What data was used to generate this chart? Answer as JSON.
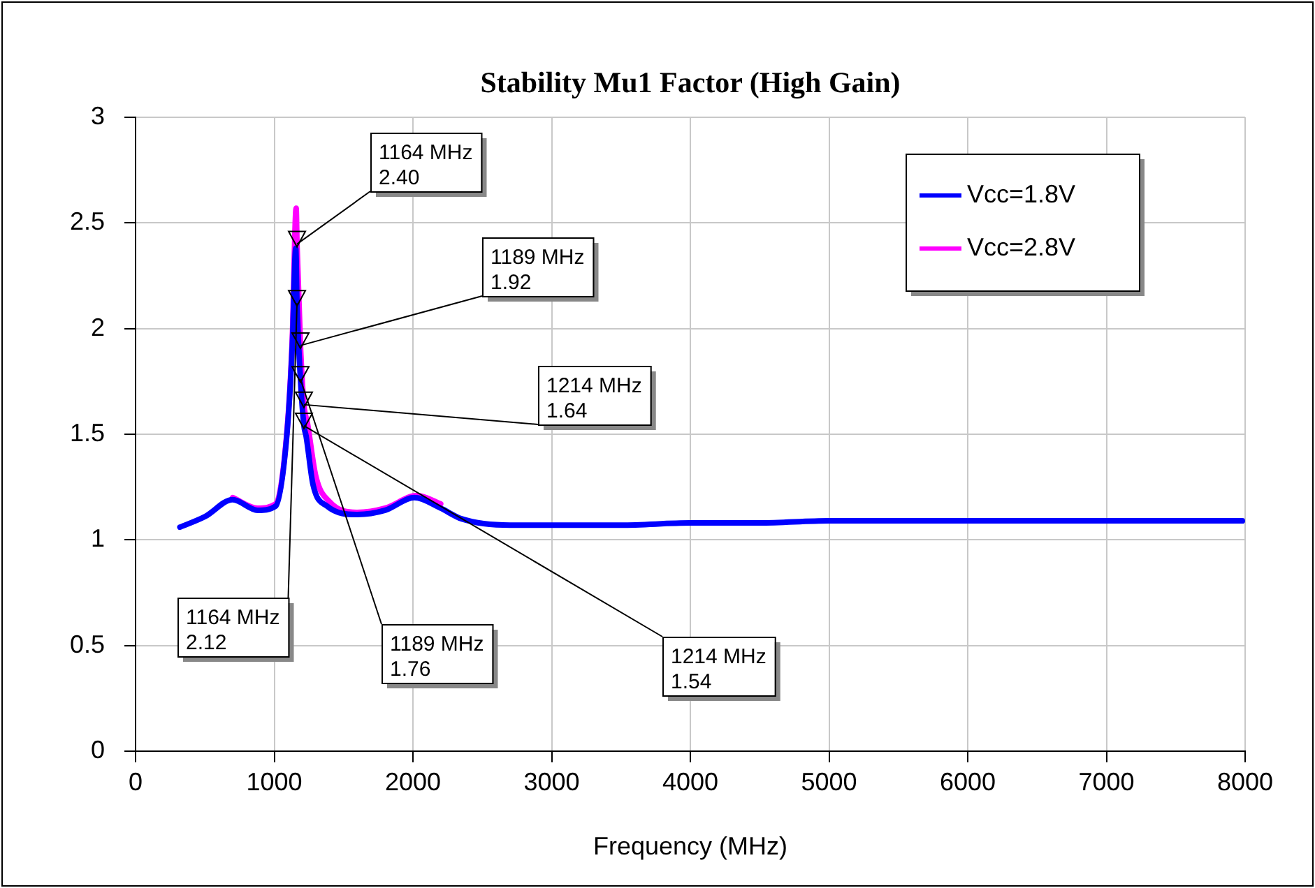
{
  "chart_data": {
    "type": "line",
    "title": "Stability Mu1 Factor (High Gain)",
    "xlabel": "Frequency (MHz)",
    "xlim": [
      0,
      8000
    ],
    "xticks": [
      0,
      1000,
      2000,
      3000,
      4000,
      5000,
      6000,
      7000,
      8000
    ],
    "ylim": [
      0,
      3
    ],
    "yticks": [
      0,
      0.5,
      1,
      1.5,
      2,
      2.5,
      3
    ],
    "grid": true,
    "legend": "top right",
    "marker": "none",
    "line_style": "solid",
    "series": [
      {
        "name": "Vcc=1.8V",
        "color": "#0000ff",
        "x": [
          320,
          500,
          700,
          880,
          1010,
          1090,
          1130,
          1155,
          1164,
          1189,
          1214,
          1230,
          1280,
          1380,
          1600,
          1800,
          2010,
          2200,
          2350,
          2700,
          3000,
          3500,
          4000,
          4500,
          5000,
          5500,
          6000,
          6500,
          7000,
          7500,
          7980
        ],
        "values": [
          1.06,
          1.11,
          1.19,
          1.14,
          1.16,
          1.49,
          1.92,
          2.38,
          2.12,
          1.76,
          1.54,
          1.49,
          1.26,
          1.16,
          1.12,
          1.14,
          1.2,
          1.15,
          1.1,
          1.07,
          1.07,
          1.07,
          1.08,
          1.08,
          1.09,
          1.09,
          1.09,
          1.09,
          1.09,
          1.09,
          1.09
        ]
      },
      {
        "name": "Vcc=2.8V",
        "color": "#ff00ff",
        "x": [
          700,
          880,
          1010,
          1090,
          1130,
          1158,
          1164,
          1189,
          1214,
          1240,
          1300,
          1400,
          1600,
          1800,
          2030,
          2200
        ],
        "values": [
          1.2,
          1.15,
          1.17,
          1.5,
          1.95,
          2.57,
          2.4,
          1.92,
          1.64,
          1.55,
          1.3,
          1.18,
          1.13,
          1.15,
          1.21,
          1.17
        ]
      }
    ],
    "annotations": [
      {
        "text": "1164 MHz\n2.40",
        "x": 1164,
        "y": 2.4
      },
      {
        "text": "1189 MHz\n1.92",
        "x": 1189,
        "y": 1.92
      },
      {
        "text": "1214 MHz\n1.64",
        "x": 1214,
        "y": 1.64
      },
      {
        "text": "1164 MHz\n2.12",
        "x": 1164,
        "y": 2.12
      },
      {
        "text": "1189 MHz\n1.76",
        "x": 1189,
        "y": 1.76
      },
      {
        "text": "1214 MHz\n1.54",
        "x": 1214,
        "y": 1.54
      }
    ]
  }
}
